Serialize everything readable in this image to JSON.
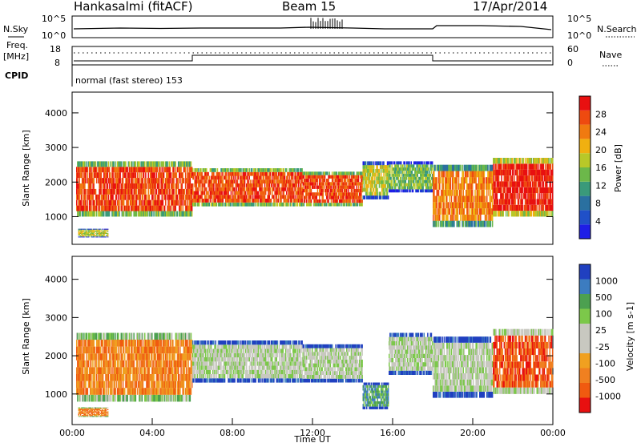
{
  "header": {
    "station": "Hankasalmi (fitACF)",
    "beam": "Beam 15",
    "date": "17/Apr/2014"
  },
  "top_panels": {
    "nsky_label": "N.Sky",
    "nsky_ticks": [
      "10^5",
      "10^0"
    ],
    "nsearch_label": "N.Search",
    "nsearch_ticks": [
      "10^5",
      "10^0"
    ],
    "freq_label": "Freq.",
    "freq_unit": "[MHz]",
    "freq_ticks": [
      "18",
      "8"
    ],
    "nave_label": "Nave",
    "nave_ticks": [
      "60",
      "0"
    ],
    "cpid_label": "CPID",
    "cpid_text": "normal (fast stereo) 153"
  },
  "colors": {
    "power_scale": [
      "#1e1ee6",
      "#2050c8",
      "#2a70a0",
      "#3a9a7a",
      "#6cb84a",
      "#b8c828",
      "#f0b010",
      "#f07a10",
      "#ee4a10",
      "#e81010"
    ],
    "velocity_scale": [
      "#2040c0",
      "#3c7cc0",
      "#4ca050",
      "#7cc84a",
      "#c8c8c0",
      "#c8c8c0",
      "#f0a020",
      "#f08020",
      "#f05a10",
      "#e81010"
    ]
  },
  "chart_data": [
    {
      "type": "heatmap",
      "panel": "power",
      "ylabel": "Slant Range [km]",
      "yticks": [
        "1000",
        "2000",
        "3000",
        "4000"
      ],
      "ylim": [
        200,
        4600
      ],
      "xlim": [
        "00:00",
        "24:00"
      ],
      "colorbar_label": "Power [dB]",
      "colorbar_ticks": [
        "4",
        "8",
        "12",
        "16",
        "20",
        "24",
        "28"
      ],
      "bands": [
        {
          "t0": 0.2,
          "t1": 6.0,
          "r0": 1000,
          "r1": 2600,
          "level": 8
        },
        {
          "t0": 0.3,
          "t1": 1.8,
          "r0": 400,
          "r1": 650,
          "level": 5
        },
        {
          "t0": 6.0,
          "t1": 11.5,
          "r0": 1300,
          "r1": 2400,
          "level": 8
        },
        {
          "t0": 11.5,
          "t1": 14.5,
          "r0": 1300,
          "r1": 2300,
          "level": 8
        },
        {
          "t0": 14.5,
          "t1": 15.8,
          "r0": 1500,
          "r1": 2600,
          "level": 5
        },
        {
          "t0": 15.8,
          "t1": 18.0,
          "r0": 1700,
          "r1": 2600,
          "level": 4
        },
        {
          "t0": 18.0,
          "t1": 21.0,
          "r0": 700,
          "r1": 2500,
          "level": 7
        },
        {
          "t0": 21.0,
          "t1": 24.0,
          "r0": 1000,
          "r1": 2700,
          "level": 9
        }
      ]
    },
    {
      "type": "heatmap",
      "panel": "velocity",
      "ylabel": "Slant Range [km]",
      "yticks": [
        "1000",
        "2000",
        "3000",
        "4000"
      ],
      "ylim": [
        200,
        4600
      ],
      "xlabel": "Time UT",
      "xticks": [
        "00:00",
        "04:00",
        "08:00",
        "12:00",
        "16:00",
        "20:00",
        "00:00"
      ],
      "colorbar_label": "Velocity [m s-1]",
      "colorbar_ticks": [
        "1000",
        "500",
        "100",
        "25",
        "-25",
        "-100",
        "-500",
        "-1000"
      ],
      "bands": [
        {
          "t0": 0.2,
          "t1": 6.0,
          "r0": 800,
          "r1": 2600,
          "level": 7
        },
        {
          "t0": 0.3,
          "t1": 1.8,
          "r0": 400,
          "r1": 650,
          "level": 7
        },
        {
          "t0": 6.0,
          "t1": 11.5,
          "r0": 1300,
          "r1": 2400,
          "level": 4
        },
        {
          "t0": 11.5,
          "t1": 14.5,
          "r0": 1300,
          "r1": 2300,
          "level": 4
        },
        {
          "t0": 14.5,
          "t1": 15.8,
          "r0": 600,
          "r1": 1300,
          "level": 2
        },
        {
          "t0": 15.8,
          "t1": 18.0,
          "r0": 1500,
          "r1": 2600,
          "level": 4
        },
        {
          "t0": 18.0,
          "t1": 21.0,
          "r0": 900,
          "r1": 2500,
          "level": 4
        },
        {
          "t0": 21.0,
          "t1": 24.0,
          "r0": 1000,
          "r1": 2700,
          "level": 8
        }
      ]
    }
  ]
}
